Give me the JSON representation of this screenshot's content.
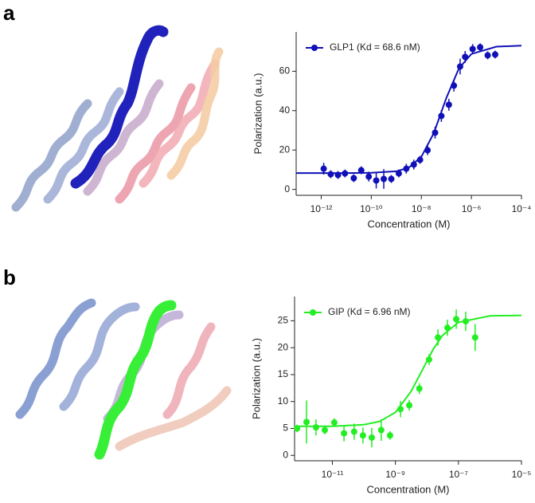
{
  "chart_data": [
    {
      "type": "scatter",
      "panel_label": "a",
      "xscale": "log",
      "x_label": "Concentration (M)",
      "y_label": "Polarization (a.u.)",
      "xlim": [
        1e-13,
        0.0001
      ],
      "ylim": [
        -3,
        80
      ],
      "xticks": [
        {
          "value": 1e-12,
          "label": "10⁻¹²"
        },
        {
          "value": 1e-10,
          "label": "10⁻¹⁰"
        },
        {
          "value": 1e-08,
          "label": "10⁻⁸"
        },
        {
          "value": 1e-06,
          "label": "10⁻⁶"
        },
        {
          "value": 0.0001,
          "label": "10⁻⁴"
        }
      ],
      "yticks": [
        0,
        20,
        40,
        60
      ],
      "legend": "upper left",
      "series": [
        {
          "name": "GLP1 (Kd = 68.6 nM)",
          "color": "#1010b8",
          "x": [
            1.26e-12,
            2.4e-12,
            4.68e-12,
            8.91e-12,
            2e-11,
            3.98e-11,
            7.94e-11,
            1.58e-10,
            3.16e-10,
            6.31e-10,
            1.26e-09,
            2.51e-09,
            5.01e-09,
            8.91e-09,
            1.78e-08,
            3.55e-08,
            6.31e-08,
            1.26e-07,
            2e-07,
            3.55e-07,
            5.62e-07,
            1.12e-06,
            2.24e-06,
            4.47e-06,
            8.91e-06
          ],
          "values": [
            10.5,
            7.7,
            7.3,
            8.1,
            5.7,
            9.7,
            6.5,
            4.5,
            5.3,
            5.3,
            8.1,
            10.5,
            12.6,
            15,
            19.9,
            28.8,
            37.3,
            43,
            52.7,
            62.4,
            67.3,
            71.3,
            72.2,
            68.1,
            68.5
          ],
          "errors": [
            3,
            2,
            2,
            2,
            2,
            2,
            2.5,
            4,
            5,
            2,
            2,
            2.5,
            2.5,
            2,
            2.5,
            3,
            3,
            3,
            3,
            4,
            3,
            2.5,
            2,
            2,
            2
          ]
        }
      ],
      "fit": {
        "x": [
          1e-13,
          1e-12,
          1e-11,
          1e-10,
          1e-09,
          3.16e-09,
          1e-08,
          3.16e-08,
          6.86e-08,
          1e-07,
          3.16e-07,
          1e-06,
          1e-05,
          0.0001
        ],
        "values": [
          8.3,
          8.3,
          8.3,
          8.4,
          9.2,
          11.1,
          16.5,
          28.6,
          40.6,
          46.5,
          61.4,
          68.8,
          72.5,
          73
        ]
      }
    },
    {
      "type": "scatter",
      "panel_label": "b",
      "xscale": "log",
      "x_label": "Concentration (M)",
      "y_label": "Polarization (a.u.)",
      "xlim": [
        6.31e-13,
        1e-05
      ],
      "ylim": [
        -1,
        29.5
      ],
      "xticks": [
        {
          "value": 1e-11,
          "label": "10⁻¹¹"
        },
        {
          "value": 1e-09,
          "label": "10⁻⁹"
        },
        {
          "value": 1e-07,
          "label": "10⁻⁷"
        },
        {
          "value": 1e-05,
          "label": "10⁻⁵"
        }
      ],
      "yticks": [
        0,
        5,
        10,
        15,
        20,
        25
      ],
      "legend": "upper left",
      "series": [
        {
          "name": "GIP (Kd = 6.96 nM)",
          "color": "#22ee22",
          "x": [
            7.59e-13,
            1.51e-12,
            3.02e-12,
            5.75e-12,
            1.15e-11,
            2.34e-11,
            4.9e-11,
            9.33e-11,
            1.78e-10,
            3.55e-10,
            6.76e-10,
            1.45e-09,
            2.75e-09,
            5.75e-09,
            1.17e-08,
            2.24e-08,
            4.47e-08,
            8.51e-08,
            1.7e-07,
            3.39e-07
          ],
          "values": [
            5.0,
            6.2,
            5.2,
            4.7,
            6.1,
            4.1,
            4.4,
            3.7,
            3.3,
            4.7,
            3.7,
            8.6,
            9.3,
            12.4,
            17.8,
            21.9,
            23.7,
            25.3,
            24.9,
            21.9
          ],
          "errors": [
            0.7,
            4,
            1.5,
            0.8,
            0.8,
            1.5,
            1.5,
            1.5,
            1.8,
            2,
            0.8,
            1.5,
            1,
            1,
            1,
            1.5,
            1.5,
            1.8,
            1.8,
            2.5
          ]
        }
      ],
      "fit": {
        "x": [
          6.31e-13,
          1e-11,
          1e-10,
          3.16e-10,
          1e-09,
          3.16e-09,
          6.96e-09,
          1.58e-08,
          3.16e-08,
          1e-07,
          1e-06,
          1e-05
        ],
        "values": [
          5.4,
          5.4,
          5.7,
          6.3,
          8.0,
          11.9,
          15.7,
          19.7,
          22.3,
          24.7,
          25.9,
          26
        ]
      }
    }
  ]
}
